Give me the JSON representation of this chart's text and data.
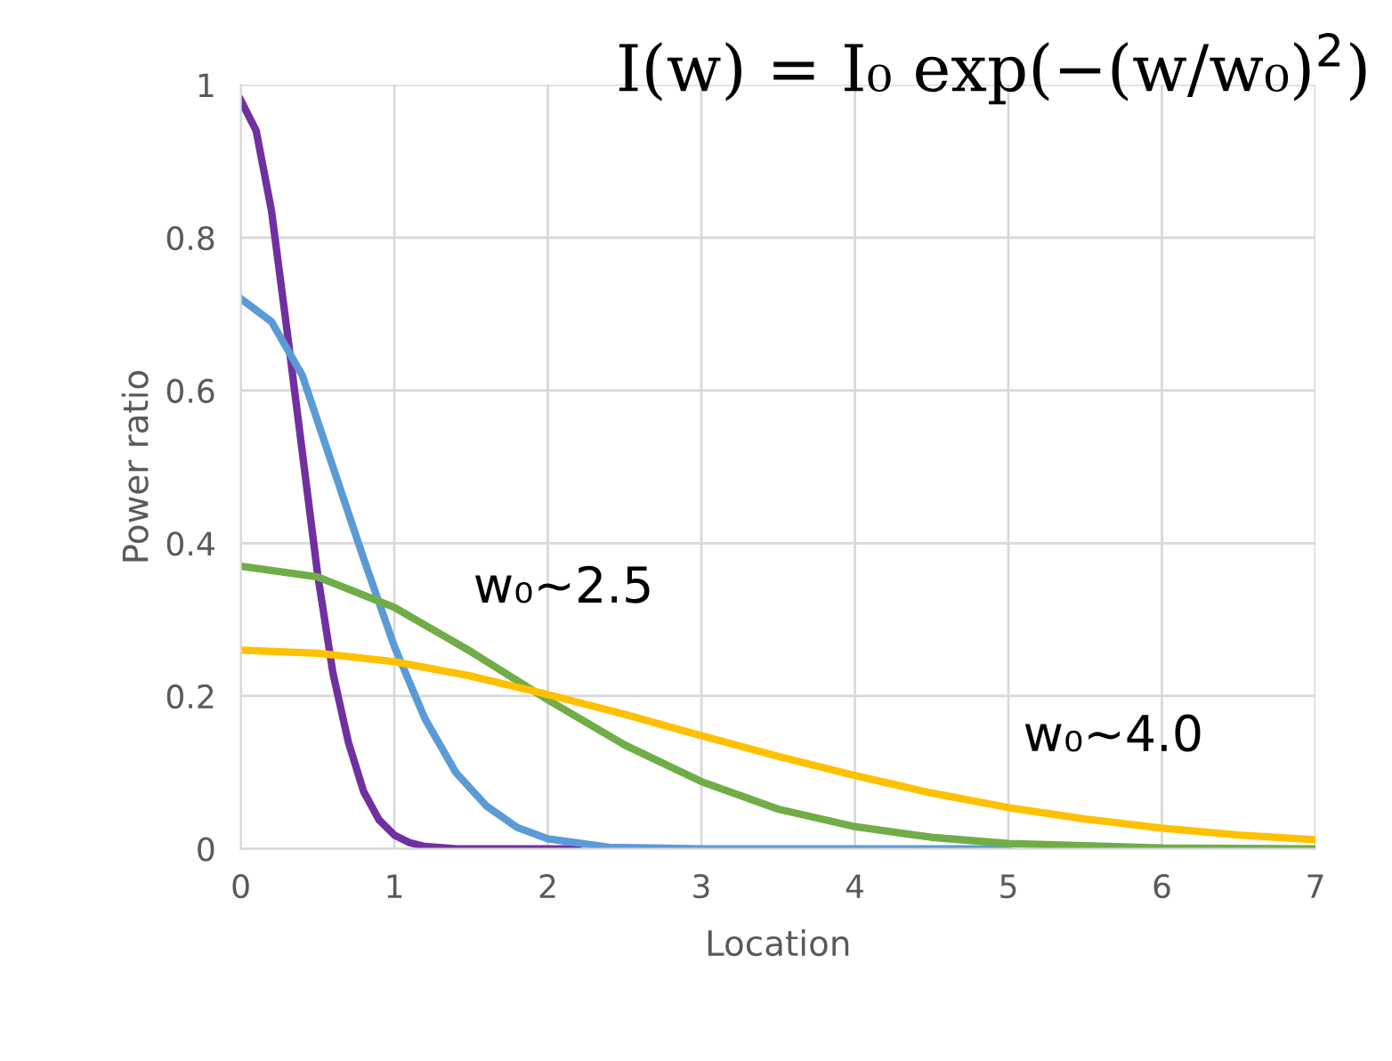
{
  "chart_data": {
    "type": "line",
    "xlabel": "Location",
    "ylabel": "Power ratio",
    "xlim": [
      0,
      7
    ],
    "ylim": [
      0,
      1
    ],
    "xticks": [
      0,
      1,
      2,
      3,
      4,
      5,
      6,
      7
    ],
    "yticks": [
      0,
      0.2,
      0.4,
      0.6,
      0.8,
      1
    ],
    "grid": true,
    "line_style": "solid",
    "marker": "none",
    "series": [
      {
        "color": "#7030a0",
        "x": [
          0,
          0.1,
          0.2,
          0.3,
          0.4,
          0.5,
          0.6,
          0.7,
          0.8,
          0.9,
          1.0,
          1.1,
          1.2,
          1.4,
          2.2
        ],
        "values": [
          0.98,
          0.94,
          0.835,
          0.68,
          0.52,
          0.36,
          0.23,
          0.14,
          0.075,
          0.038,
          0.018,
          0.008,
          0.003,
          0,
          0
        ]
      },
      {
        "color": "#5b9bd5",
        "x": [
          0,
          0.2,
          0.4,
          0.6,
          0.8,
          1.0,
          1.2,
          1.4,
          1.6,
          1.8,
          2.0,
          2.4,
          3,
          5
        ],
        "values": [
          0.72,
          0.69,
          0.62,
          0.5,
          0.38,
          0.265,
          0.17,
          0.1,
          0.056,
          0.028,
          0.013,
          0.002,
          0,
          0
        ]
      },
      {
        "color": "#70ad47",
        "x": [
          0,
          0.5,
          1,
          1.5,
          2,
          2.5,
          3,
          3.5,
          4,
          4.5,
          5,
          6,
          7
        ],
        "values": [
          0.37,
          0.356,
          0.316,
          0.258,
          0.195,
          0.136,
          0.088,
          0.052,
          0.029,
          0.015,
          0.007,
          0.001,
          0
        ]
      },
      {
        "color": "#ffc000",
        "x": [
          0,
          0.5,
          1,
          1.5,
          2,
          2.5,
          3,
          3.5,
          4,
          4.5,
          5,
          5.5,
          6,
          6.5,
          7
        ],
        "values": [
          0.26,
          0.256,
          0.245,
          0.226,
          0.202,
          0.176,
          0.148,
          0.121,
          0.096,
          0.073,
          0.054,
          0.039,
          0.027,
          0.018,
          0.012
        ]
      }
    ],
    "annotations": [
      "I(w) = I₀ exp(−(w/w₀)$^{2}$)",
      "w₀~2.5",
      "w₀~4.0"
    ]
  }
}
